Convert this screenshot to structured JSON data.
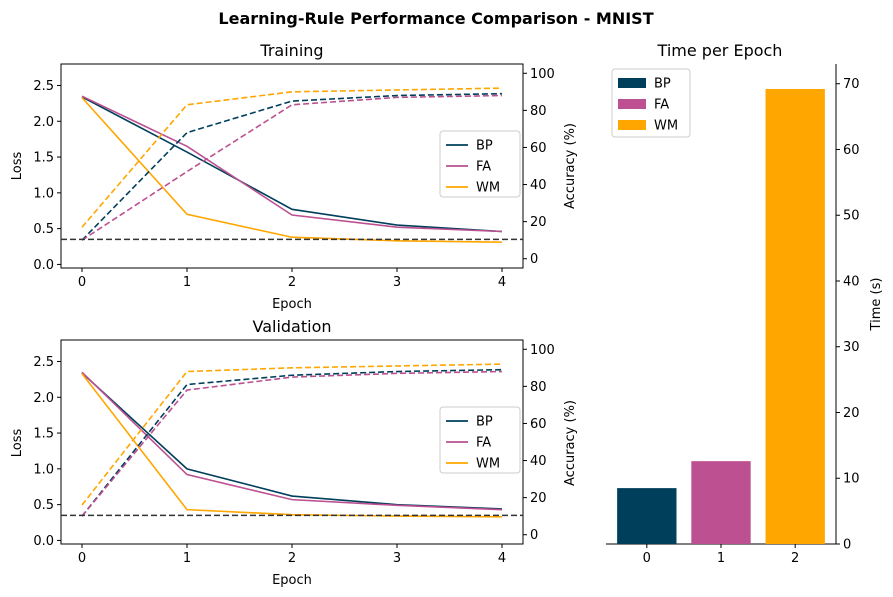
{
  "figure": {
    "title": "Learning-Rule Performance Comparison - MNIST"
  },
  "colors": {
    "BP": "#003f5c",
    "FA": "#bc5090",
    "WM": "#ffa600",
    "reference": "#333333"
  },
  "chart_data": [
    {
      "type": "line",
      "title": "Training",
      "xlabel": "Epoch",
      "ylabel": "Loss",
      "y2label": "Accuracy (%)",
      "x": [
        0,
        1,
        2,
        3,
        4
      ],
      "xticks": [
        "0",
        "1",
        "2",
        "3",
        "4"
      ],
      "ylim": [
        -0.05,
        2.8
      ],
      "yticks": [
        "0.0",
        "0.5",
        "1.0",
        "1.5",
        "2.0",
        "2.5"
      ],
      "y2lim": [
        -5,
        105
      ],
      "y2ticks": [
        "0",
        "20",
        "40",
        "60",
        "80",
        "100"
      ],
      "reference_line_loss": 0.35,
      "legend": {
        "placement": "center-right",
        "entries": [
          "BP",
          "FA",
          "WM"
        ]
      },
      "loss_series": [
        {
          "name": "BP",
          "values": [
            2.34,
            1.57,
            0.77,
            0.55,
            0.46
          ]
        },
        {
          "name": "FA",
          "values": [
            2.35,
            1.65,
            0.69,
            0.52,
            0.46
          ]
        },
        {
          "name": "WM",
          "values": [
            2.33,
            0.7,
            0.38,
            0.33,
            0.31
          ]
        }
      ],
      "accuracy_series": [
        {
          "name": "BP",
          "values": [
            10,
            68,
            85,
            88,
            89
          ]
        },
        {
          "name": "FA",
          "values": [
            10,
            47,
            83,
            87,
            88
          ]
        },
        {
          "name": "WM",
          "values": [
            17,
            83,
            90,
            91,
            92
          ]
        }
      ]
    },
    {
      "type": "line",
      "title": "Validation",
      "xlabel": "Epoch",
      "ylabel": "Loss",
      "y2label": "Accuracy (%)",
      "x": [
        0,
        1,
        2,
        3,
        4
      ],
      "xticks": [
        "0",
        "1",
        "2",
        "3",
        "4"
      ],
      "ylim": [
        -0.05,
        2.8
      ],
      "yticks": [
        "0.0",
        "0.5",
        "1.0",
        "1.5",
        "2.0",
        "2.5"
      ],
      "y2lim": [
        -5,
        105
      ],
      "y2ticks": [
        "0",
        "20",
        "40",
        "60",
        "80",
        "100"
      ],
      "reference_line_loss": 0.35,
      "legend": {
        "placement": "center-right",
        "entries": [
          "BP",
          "FA",
          "WM"
        ]
      },
      "loss_series": [
        {
          "name": "BP",
          "values": [
            2.34,
            1.0,
            0.62,
            0.5,
            0.44
          ]
        },
        {
          "name": "FA",
          "values": [
            2.35,
            0.92,
            0.57,
            0.49,
            0.43
          ]
        },
        {
          "name": "WM",
          "values": [
            2.33,
            0.43,
            0.36,
            0.34,
            0.33
          ]
        }
      ],
      "accuracy_series": [
        {
          "name": "BP",
          "values": [
            10,
            81,
            86,
            88,
            89
          ]
        },
        {
          "name": "FA",
          "values": [
            10,
            78,
            85,
            87,
            88
          ]
        },
        {
          "name": "WM",
          "values": [
            16,
            88,
            90,
            91,
            92
          ]
        }
      ]
    },
    {
      "type": "bar",
      "title": "Time per Epoch",
      "xlabel": "",
      "ylabel": "Time (s)",
      "categories": [
        "0",
        "1",
        "2"
      ],
      "values": [
        8.5,
        12.6,
        69.2
      ],
      "series_names": [
        "BP",
        "FA",
        "WM"
      ],
      "ylim": [
        0,
        73
      ],
      "yticks": [
        "0",
        "10",
        "20",
        "30",
        "40",
        "50",
        "60",
        "70"
      ],
      "legend": {
        "placement": "top-left",
        "entries": [
          "BP",
          "FA",
          "WM"
        ]
      }
    }
  ]
}
